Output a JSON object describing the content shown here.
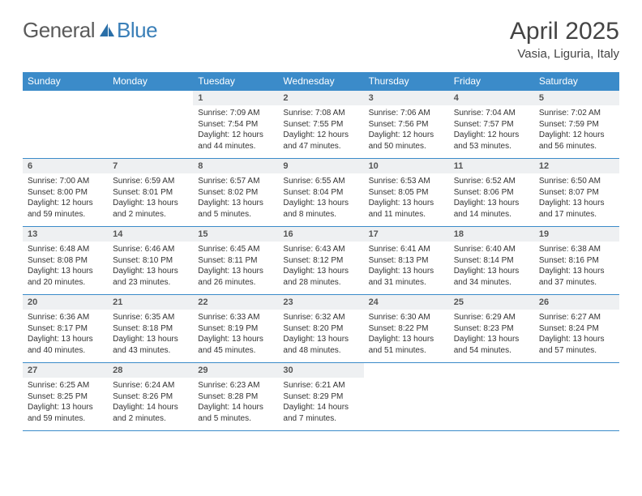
{
  "brand": {
    "part1": "General",
    "part2": "Blue"
  },
  "title": "April 2025",
  "location": "Vasia, Liguria, Italy",
  "colors": {
    "header_bg": "#3b8bc9",
    "header_text": "#ffffff",
    "daynum_bg": "#eef0f2",
    "border": "#3b8bc9",
    "body_text": "#333333",
    "title_text": "#444444"
  },
  "daysOfWeek": [
    "Sunday",
    "Monday",
    "Tuesday",
    "Wednesday",
    "Thursday",
    "Friday",
    "Saturday"
  ],
  "weeks": [
    [
      null,
      null,
      {
        "n": "1",
        "sr": "7:09 AM",
        "ss": "7:54 PM",
        "dl": "12 hours and 44 minutes."
      },
      {
        "n": "2",
        "sr": "7:08 AM",
        "ss": "7:55 PM",
        "dl": "12 hours and 47 minutes."
      },
      {
        "n": "3",
        "sr": "7:06 AM",
        "ss": "7:56 PM",
        "dl": "12 hours and 50 minutes."
      },
      {
        "n": "4",
        "sr": "7:04 AM",
        "ss": "7:57 PM",
        "dl": "12 hours and 53 minutes."
      },
      {
        "n": "5",
        "sr": "7:02 AM",
        "ss": "7:59 PM",
        "dl": "12 hours and 56 minutes."
      }
    ],
    [
      {
        "n": "6",
        "sr": "7:00 AM",
        "ss": "8:00 PM",
        "dl": "12 hours and 59 minutes."
      },
      {
        "n": "7",
        "sr": "6:59 AM",
        "ss": "8:01 PM",
        "dl": "13 hours and 2 minutes."
      },
      {
        "n": "8",
        "sr": "6:57 AM",
        "ss": "8:02 PM",
        "dl": "13 hours and 5 minutes."
      },
      {
        "n": "9",
        "sr": "6:55 AM",
        "ss": "8:04 PM",
        "dl": "13 hours and 8 minutes."
      },
      {
        "n": "10",
        "sr": "6:53 AM",
        "ss": "8:05 PM",
        "dl": "13 hours and 11 minutes."
      },
      {
        "n": "11",
        "sr": "6:52 AM",
        "ss": "8:06 PM",
        "dl": "13 hours and 14 minutes."
      },
      {
        "n": "12",
        "sr": "6:50 AM",
        "ss": "8:07 PM",
        "dl": "13 hours and 17 minutes."
      }
    ],
    [
      {
        "n": "13",
        "sr": "6:48 AM",
        "ss": "8:08 PM",
        "dl": "13 hours and 20 minutes."
      },
      {
        "n": "14",
        "sr": "6:46 AM",
        "ss": "8:10 PM",
        "dl": "13 hours and 23 minutes."
      },
      {
        "n": "15",
        "sr": "6:45 AM",
        "ss": "8:11 PM",
        "dl": "13 hours and 26 minutes."
      },
      {
        "n": "16",
        "sr": "6:43 AM",
        "ss": "8:12 PM",
        "dl": "13 hours and 28 minutes."
      },
      {
        "n": "17",
        "sr": "6:41 AM",
        "ss": "8:13 PM",
        "dl": "13 hours and 31 minutes."
      },
      {
        "n": "18",
        "sr": "6:40 AM",
        "ss": "8:14 PM",
        "dl": "13 hours and 34 minutes."
      },
      {
        "n": "19",
        "sr": "6:38 AM",
        "ss": "8:16 PM",
        "dl": "13 hours and 37 minutes."
      }
    ],
    [
      {
        "n": "20",
        "sr": "6:36 AM",
        "ss": "8:17 PM",
        "dl": "13 hours and 40 minutes."
      },
      {
        "n": "21",
        "sr": "6:35 AM",
        "ss": "8:18 PM",
        "dl": "13 hours and 43 minutes."
      },
      {
        "n": "22",
        "sr": "6:33 AM",
        "ss": "8:19 PM",
        "dl": "13 hours and 45 minutes."
      },
      {
        "n": "23",
        "sr": "6:32 AM",
        "ss": "8:20 PM",
        "dl": "13 hours and 48 minutes."
      },
      {
        "n": "24",
        "sr": "6:30 AM",
        "ss": "8:22 PM",
        "dl": "13 hours and 51 minutes."
      },
      {
        "n": "25",
        "sr": "6:29 AM",
        "ss": "8:23 PM",
        "dl": "13 hours and 54 minutes."
      },
      {
        "n": "26",
        "sr": "6:27 AM",
        "ss": "8:24 PM",
        "dl": "13 hours and 57 minutes."
      }
    ],
    [
      {
        "n": "27",
        "sr": "6:25 AM",
        "ss": "8:25 PM",
        "dl": "13 hours and 59 minutes."
      },
      {
        "n": "28",
        "sr": "6:24 AM",
        "ss": "8:26 PM",
        "dl": "14 hours and 2 minutes."
      },
      {
        "n": "29",
        "sr": "6:23 AM",
        "ss": "8:28 PM",
        "dl": "14 hours and 5 minutes."
      },
      {
        "n": "30",
        "sr": "6:21 AM",
        "ss": "8:29 PM",
        "dl": "14 hours and 7 minutes."
      },
      null,
      null,
      null
    ]
  ],
  "labels": {
    "sunrise": "Sunrise: ",
    "sunset": "Sunset: ",
    "daylight": "Daylight: "
  }
}
